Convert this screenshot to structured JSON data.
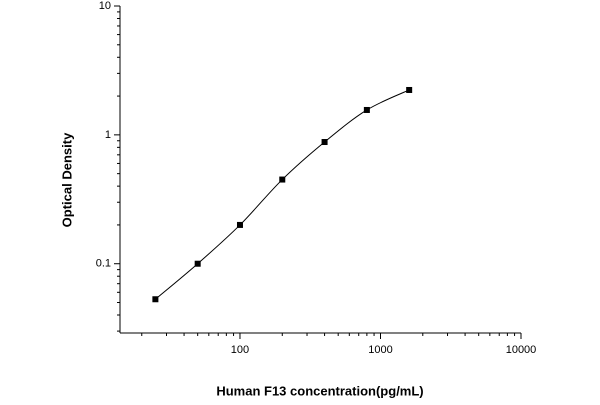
{
  "chart_data": {
    "type": "scatter",
    "xlabel": "Human F13 concentration(pg/mL)",
    "ylabel": "Optical Density",
    "x": [
      25,
      50,
      100,
      200,
      400,
      800,
      1600
    ],
    "values": [
      0.053,
      0.1,
      0.2,
      0.45,
      0.88,
      1.56,
      2.23
    ],
    "color": "#000000",
    "xlog": true,
    "ylog": true,
    "fit_line": true,
    "xlim": [
      14,
      10000
    ],
    "ylim": [
      0.029,
      10
    ],
    "xticks": [
      100,
      1000,
      10000
    ],
    "yticks": [
      0.1,
      1,
      10
    ]
  }
}
